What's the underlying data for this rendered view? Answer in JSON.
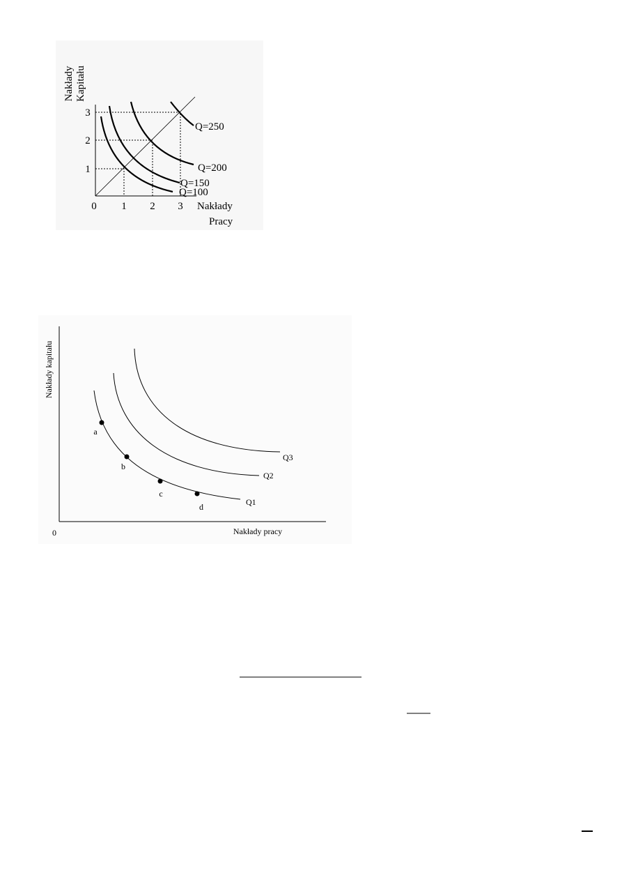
{
  "figure1": {
    "y_label": [
      "Nakłady",
      "Kapitału"
    ],
    "x_label": [
      "Nakłady",
      "Pracy"
    ],
    "x_ticks": [
      "0",
      "1",
      "2",
      "3"
    ],
    "y_ticks": [
      "1",
      "2",
      "3"
    ],
    "curve_labels": [
      "Q=250",
      "Q=200",
      "Q=150",
      "Q=100"
    ]
  },
  "figure2": {
    "y_label": "Nakłady kapitału",
    "x_label": "Nakłady pracy",
    "origin": "0",
    "curve_labels": [
      "Q3",
      "Q2",
      "Q1"
    ],
    "point_labels": [
      "a",
      "b",
      "c",
      "d"
    ]
  }
}
